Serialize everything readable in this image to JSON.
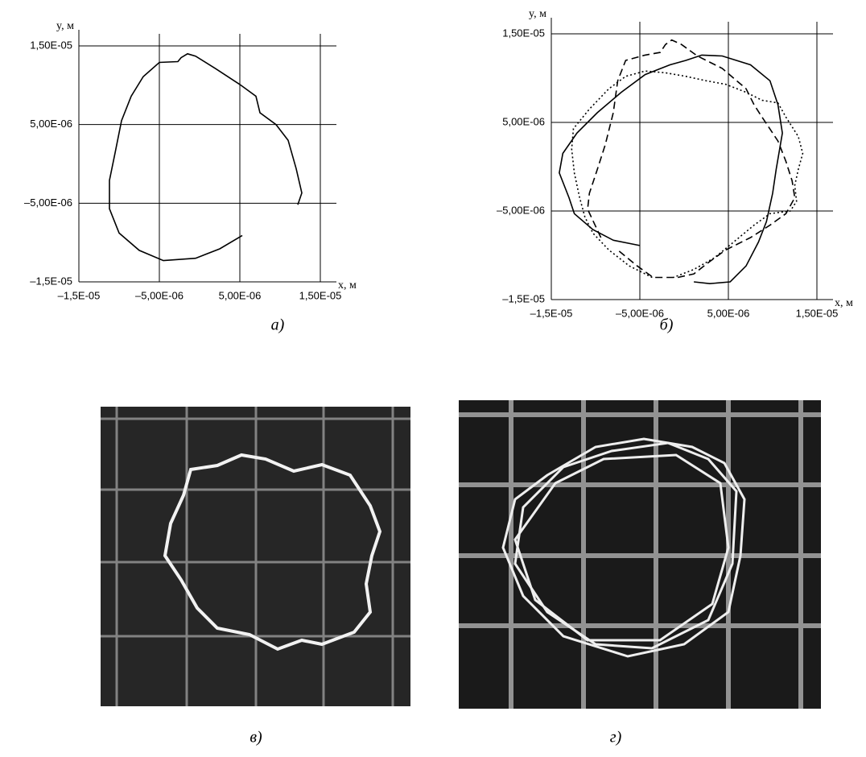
{
  "chart_data": [
    {
      "type": "line",
      "caption": "а)",
      "x_label": "x, м",
      "y_label": "y, м",
      "grid": true,
      "xlim": [
        -1.5e-05,
        1.5e-05
      ],
      "ylim": [
        -1.5e-05,
        1.5e-05
      ],
      "xticks": [
        {
          "value": -1.5e-05,
          "label": "–1,5E-05"
        },
        {
          "value": -5e-06,
          "label": "–5,00E-06"
        },
        {
          "value": 5e-06,
          "label": "5,00E-06"
        },
        {
          "value": 1.5e-05,
          "label": "1,50E-05"
        }
      ],
      "yticks": [
        {
          "value": -1.5e-05,
          "label": "–1,5E-05"
        },
        {
          "value": -5e-06,
          "label": "–5,00E-06"
        },
        {
          "value": 5e-06,
          "label": "5,00E-06"
        },
        {
          "value": 1.5e-05,
          "label": "1,50E-05"
        }
      ],
      "series": [
        {
          "color": "#000000",
          "dash": "solid",
          "x": [
            5.3e-06,
            2.5e-06,
            -5e-07,
            -4.5e-06,
            -7.5e-06,
            -1e-05,
            -1.12e-05,
            -1.12e-05,
            -1.05e-05,
            -9.7e-06,
            -8.5e-06,
            -7e-06,
            -5e-06,
            -2.7e-06,
            -2.3e-06,
            -1.5e-06,
            -5e-07,
            2e-06,
            5e-06,
            7e-06,
            7.5e-06,
            9.5e-06,
            1.1e-05,
            1.2e-05,
            1.27e-05,
            1.22e-05
          ],
          "values": [
            -9.1e-06,
            -1.08e-05,
            -1.2e-05,
            -1.23e-05,
            -1.1e-05,
            -8.8e-06,
            -5.7e-06,
            -2.1e-06,
            1.4e-06,
            5.5e-06,
            8.6e-06,
            1.11e-05,
            1.29e-05,
            1.3e-05,
            1.35e-05,
            1.4e-05,
            1.37e-05,
            1.21e-05,
            1.01e-05,
            8.6e-06,
            6.5e-06,
            5e-06,
            3e-06,
            -6e-07,
            -3.7e-06,
            -5.2e-06
          ]
        }
      ]
    },
    {
      "type": "line",
      "caption": "б)",
      "x_label": "x, м",
      "y_label": "y, м",
      "grid": true,
      "xlim": [
        -1.5e-05,
        1.5e-05
      ],
      "ylim": [
        -1.5e-05,
        1.5e-05
      ],
      "xticks": [
        {
          "value": -1.5e-05,
          "label": "–1,5E-05"
        },
        {
          "value": -5e-06,
          "label": "–5,00E-06"
        },
        {
          "value": 5e-06,
          "label": "5,00E-06"
        },
        {
          "value": 1.5e-05,
          "label": "1,50E-05"
        }
      ],
      "yticks": [
        {
          "value": -1.5e-05,
          "label": "–1,5E-05"
        },
        {
          "value": -5e-06,
          "label": "–5,00E-06"
        },
        {
          "value": 5e-06,
          "label": "5,00E-06"
        },
        {
          "value": 1.5e-05,
          "label": "1,50E-05"
        }
      ],
      "series": [
        {
          "color": "#000000",
          "dash": "solid",
          "x": [
            -5e-06,
            -8e-06,
            -1.03e-05,
            -1.24e-05,
            -1.3e-05,
            -1.41e-05,
            -1.37e-05,
            -1.21e-05,
            -9.8e-06,
            -7.1e-06,
            -4.4e-06,
            -1.6e-06,
            2e-07,
            2e-06,
            4.3e-06,
            7.5e-06,
            9.7e-06,
            1.06e-05,
            1.11e-05,
            1.04e-05,
            1e-05,
            9.3e-06,
            8.4e-06,
            7e-06,
            5.2e-06,
            2.9e-06,
            1.1e-06
          ],
          "values": [
            -8.9e-06,
            -8.3e-06,
            -7.1e-06,
            -5.3e-06,
            -3.5e-06,
            -7e-07,
            1.5e-06,
            3.8e-06,
            6.1e-06,
            8.4e-06,
            1.04e-05,
            1.15e-05,
            1.2e-05,
            1.26e-05,
            1.25e-05,
            1.15e-05,
            9.7e-06,
            7e-06,
            3.8e-06,
            -3e-07,
            -3e-06,
            -6.2e-06,
            -8.5e-06,
            -1.12e-05,
            -1.3e-05,
            -1.32e-05,
            -1.3e-05
          ]
        },
        {
          "color": "#000000",
          "dash": "dashed",
          "x": [
            -9.4e-06,
            -1.09e-05,
            -1.07e-05,
            -9.8e-06,
            -8.9e-06,
            -8e-06,
            -7.5e-06,
            -6.6e-06,
            -4.4e-06,
            -2.7e-06,
            -2.1e-06,
            -1.4e-06,
            -3e-07,
            1.5e-06,
            4.3e-06,
            7e-06,
            7.9e-06,
            8.8e-06,
            1.06e-05,
            1.15e-05,
            1.22e-05,
            1.25e-05,
            1.15e-05,
            9.7e-06,
            7.5e-06,
            4.7e-06,
            2.9e-06,
            1.1e-06,
            -7e-07,
            -3.5e-06,
            -5.3e-06,
            -7.5e-06
          ],
          "values": [
            -8e-06,
            -4.8e-06,
            -3e-06,
            -3e-07,
            2.5e-06,
            6.1e-06,
            9.7e-06,
            1.2e-05,
            1.26e-05,
            1.29e-05,
            1.38e-05,
            1.43e-05,
            1.38e-05,
            1.25e-05,
            1.11e-05,
            8.8e-06,
            7e-06,
            5.6e-06,
            2.9e-06,
            6e-07,
            -1.6e-06,
            -3.5e-06,
            -5.3e-06,
            -6.6e-06,
            -8e-06,
            -9.4e-06,
            -1.07e-05,
            -1.21e-05,
            -1.25e-05,
            -1.25e-05,
            -1.12e-05,
            -9.4e-06
          ]
        },
        {
          "color": "#000000",
          "dash": "dotted",
          "x": [
            -3.6e-06,
            -6.2e-06,
            -8.5e-06,
            -1.03e-05,
            -1.12e-05,
            -1.18e-05,
            -1.24e-05,
            -1.27e-05,
            -1.25e-05,
            -1.07e-05,
            -8.5e-06,
            -6.6e-06,
            -4.4e-06,
            -2.1e-06,
            2e-07,
            2.5e-06,
            4.7e-06,
            7e-06,
            8.8e-06,
            1.06e-05,
            1.15e-05,
            1.29e-05,
            1.34e-05,
            1.29e-05,
            1.25e-05,
            1.27e-05,
            1.2e-05,
            9.7e-06,
            7.9e-06,
            5.6e-06,
            3.4e-06,
            1.1e-06,
            -1.2e-06
          ],
          "values": [
            -1.25e-05,
            -1.12e-05,
            -9.4e-06,
            -7.5e-06,
            -5.7e-06,
            -3.5e-06,
            -7e-07,
            2e-06,
            4.3e-06,
            6.5e-06,
            8.8e-06,
            1.02e-05,
            1.08e-05,
            1.06e-05,
            1.02e-05,
            9.7e-06,
            9.3e-06,
            8.4e-06,
            7.5e-06,
            7.2e-06,
            5.6e-06,
            3.4e-06,
            1.5e-06,
            -3e-07,
            -2.1e-06,
            -3.9e-06,
            -5e-06,
            -5.3e-06,
            -6.6e-06,
            -8.5e-06,
            -1.03e-05,
            -1.16e-05,
            -1.25e-05
          ]
        }
      ]
    }
  ],
  "photos": [
    {
      "caption": "в)"
    },
    {
      "caption": "г)"
    }
  ]
}
